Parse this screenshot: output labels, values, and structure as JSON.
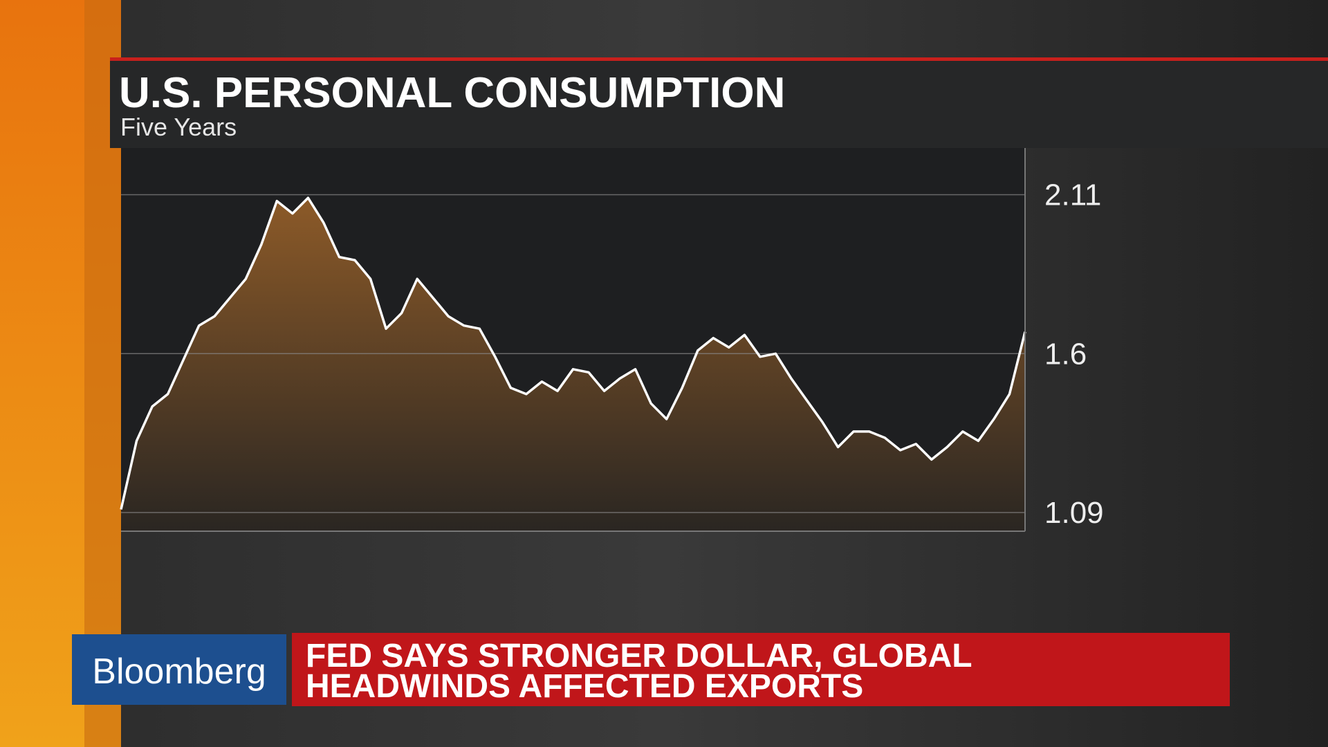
{
  "chart_data": {
    "type": "area",
    "title": "U.S. PERSONAL CONSUMPTION",
    "subtitle": "Five Years",
    "categories": [
      null,
      null,
      null,
      null,
      null,
      null,
      null,
      null,
      null,
      null,
      null,
      null,
      null,
      null,
      null,
      null,
      null,
      null,
      null,
      null,
      null,
      null,
      null,
      null,
      null,
      null,
      null,
      null,
      null,
      null,
      null,
      null,
      null,
      null,
      null,
      null,
      null,
      null,
      null,
      null,
      null,
      null,
      null,
      null,
      null,
      null,
      null,
      null,
      null,
      null,
      null,
      null,
      null,
      null,
      null,
      null,
      null,
      null,
      null
    ],
    "values": [
      1.1,
      1.32,
      1.43,
      1.47,
      1.58,
      1.69,
      1.72,
      1.78,
      1.84,
      1.95,
      2.09,
      2.05,
      2.1,
      2.02,
      1.91,
      1.9,
      1.84,
      1.68,
      1.73,
      1.84,
      1.78,
      1.72,
      1.69,
      1.68,
      1.59,
      1.49,
      1.47,
      1.51,
      1.48,
      1.55,
      1.54,
      1.48,
      1.52,
      1.55,
      1.44,
      1.39,
      1.49,
      1.61,
      1.65,
      1.62,
      1.66,
      1.59,
      1.6,
      1.52,
      1.45,
      1.38,
      1.3,
      1.35,
      1.35,
      1.33,
      1.29,
      1.31,
      1.26,
      1.3,
      1.35,
      1.32,
      1.39,
      1.47,
      1.67
    ],
    "color": "#ffffff",
    "fill_color": "#8c5a28",
    "ylim": [
      1.03,
      2.26
    ],
    "yticks": [
      1.09,
      1.6,
      {
        "value": 2.11,
        "label": "2.11"
      }
    ],
    "grid": true
  },
  "ticker": {
    "brand": "Bloomberg",
    "headline": [
      "FED SAYS STRONGER DOLLAR, GLOBAL",
      "HEADWINDS AFFECTED EXPORTS"
    ]
  }
}
